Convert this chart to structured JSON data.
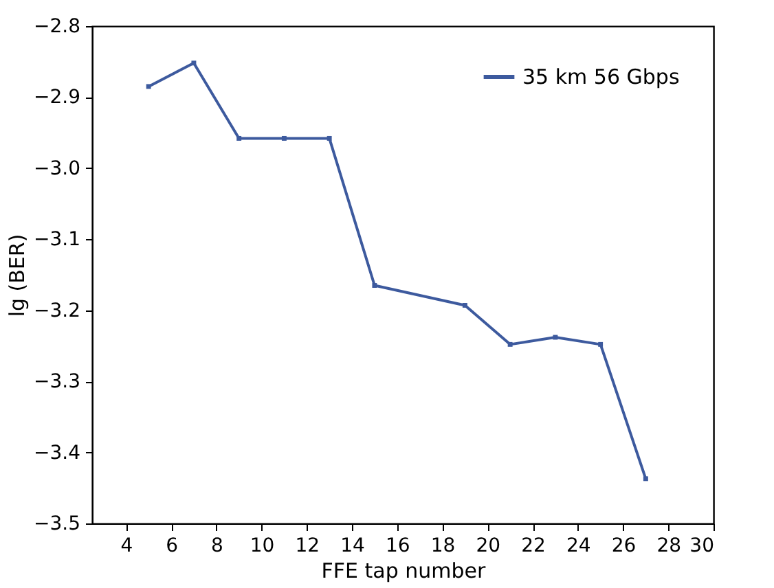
{
  "chart_data": {
    "type": "line",
    "xlabel": "FFE tap number",
    "ylabel": "lg (BER)",
    "x": [
      5,
      7,
      9,
      11,
      13,
      15,
      19,
      21,
      23,
      25,
      27
    ],
    "series": [
      {
        "name": "35 km 56 Gbps",
        "color": "#3d5a9e",
        "values": [
          -2.885,
          -2.852,
          -2.958,
          -2.958,
          -2.958,
          -3.165,
          -3.193,
          -3.248,
          -3.238,
          -3.248,
          -3.437
        ]
      }
    ],
    "xlim": [
      2.5,
      30
    ],
    "xticks": [
      4,
      6,
      8,
      10,
      12,
      14,
      16,
      18,
      20,
      22,
      24,
      26,
      28,
      30
    ],
    "ylim": [
      -3.5,
      -2.8
    ],
    "yticks": [
      {
        "value": -3.5,
        "label": "−3.5"
      },
      {
        "value": -3.4,
        "label": "−3.4"
      },
      {
        "value": -3.3,
        "label": "−3.3"
      },
      {
        "value": -3.2,
        "label": "−3.2"
      },
      {
        "value": -3.1,
        "label": "−3.1"
      },
      {
        "value": -3.0,
        "label": "−3.0"
      },
      {
        "value": -2.9,
        "label": "−2.9"
      },
      {
        "value": -2.8,
        "label": "−2.8"
      }
    ],
    "grid": false,
    "legend": "top right",
    "marker": "square",
    "line_style": "solid"
  }
}
